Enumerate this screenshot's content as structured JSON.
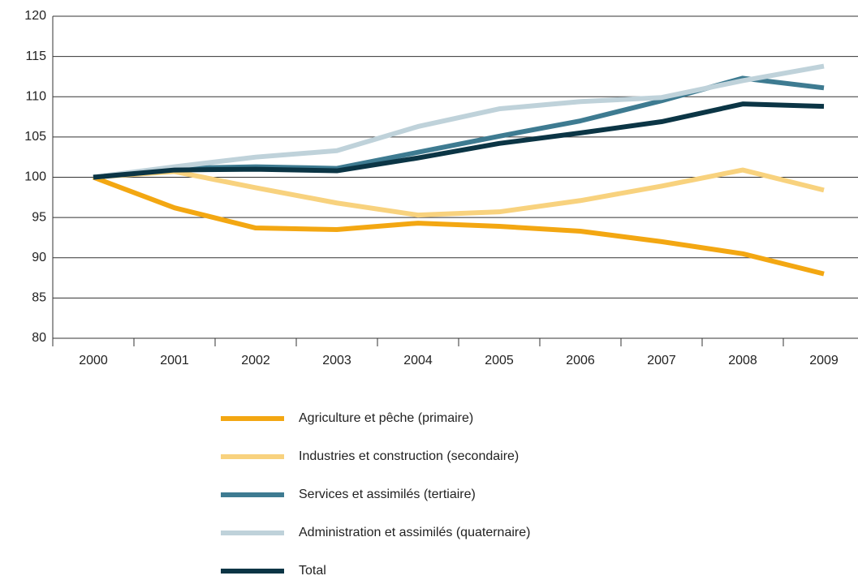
{
  "chart_data": {
    "type": "line",
    "categories": [
      "2000",
      "2001",
      "2002",
      "2003",
      "2004",
      "2005",
      "2006",
      "2007",
      "2008",
      "2009"
    ],
    "series": [
      {
        "name": "Agriculture et pêche (primaire)",
        "color": "#f3a712",
        "values": [
          100,
          96.2,
          93.7,
          93.5,
          94.3,
          93.9,
          93.3,
          92,
          90.5,
          88
        ]
      },
      {
        "name": "Industries et construction (secondaire)",
        "color": "#f8d27e",
        "values": [
          100,
          100.7,
          98.7,
          96.8,
          95.3,
          95.7,
          97.1,
          98.9,
          100.9,
          98.4
        ]
      },
      {
        "name": "Services et assimilés (tertiaire)",
        "color": "#3e7b91",
        "values": [
          100,
          101.1,
          101.3,
          101.1,
          103.1,
          105.1,
          107,
          109.5,
          112.3,
          111.1
        ]
      },
      {
        "name": "Administration et assimilés (quaternaire)",
        "color": "#bfd2da",
        "values": [
          100,
          101.3,
          102.5,
          103.3,
          106.3,
          108.5,
          109.4,
          109.9,
          112,
          113.8
        ]
      },
      {
        "name": "Total",
        "color": "#0b3545",
        "values": [
          100,
          100.9,
          101,
          100.8,
          102.4,
          104.2,
          105.5,
          106.9,
          109.1,
          108.8
        ]
      }
    ],
    "ylim": [
      80,
      120
    ],
    "yticks": [
      80,
      85,
      90,
      95,
      100,
      105,
      110,
      115,
      120
    ],
    "grid": true,
    "legend": "bottom"
  }
}
